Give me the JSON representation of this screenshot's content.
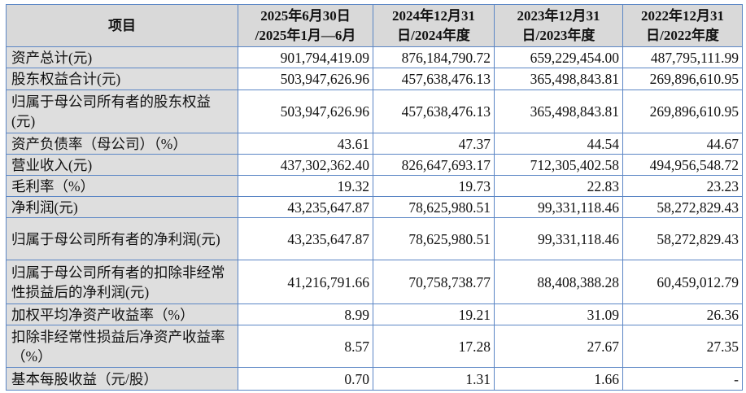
{
  "table": {
    "headers": [
      "项目",
      "2025年6月30日\n/2025年1月—6月",
      "2024年12月31\n日/2024年度",
      "2023年12月31\n日/2023年度",
      "2022年12月31\n日/2022年度"
    ],
    "rows": [
      {
        "label": "资产总计(元)",
        "values": [
          "901,794,419.09",
          "876,184,790.72",
          "659,229,454.00",
          "487,795,111.99"
        ]
      },
      {
        "label": "股东权益合计(元)",
        "values": [
          "503,947,626.96",
          "457,638,476.13",
          "365,498,843.81",
          "269,896,610.95"
        ]
      },
      {
        "label": "归属于母公司所有者的股东权益(元)",
        "values": [
          "503,947,626.96",
          "457,638,476.13",
          "365,498,843.81",
          "269,896,610.95"
        ]
      },
      {
        "label": "资产负债率（母公司）（%）",
        "values": [
          "43.61",
          "47.37",
          "44.54",
          "44.67"
        ]
      },
      {
        "label": "营业收入(元)",
        "values": [
          "437,302,362.40",
          "826,647,693.17",
          "712,305,402.58",
          "494,956,548.72"
        ]
      },
      {
        "label": "毛利率（%）",
        "values": [
          "19.32",
          "19.73",
          "22.83",
          "23.23"
        ]
      },
      {
        "label": "净利润(元)",
        "values": [
          "43,235,647.87",
          "78,625,980.51",
          "99,331,118.46",
          "58,272,829.43"
        ]
      },
      {
        "label": "归属于母公司所有者的净利润(元)",
        "values": [
          "43,235,647.87",
          "78,625,980.51",
          "99,331,118.46",
          "58,272,829.43"
        ]
      },
      {
        "label": "归属于母公司所有者的扣除非经常性损益后的净利润(元)",
        "values": [
          "41,216,791.66",
          "70,758,738.77",
          "88,408,388.28",
          "60,459,012.79"
        ]
      },
      {
        "label": "加权平均净资产收益率（%）",
        "values": [
          "8.99",
          "19.21",
          "31.09",
          "26.36"
        ]
      },
      {
        "label": "扣除非经常性损益后净资产收益率（%）",
        "values": [
          "8.57",
          "17.28",
          "27.67",
          "27.35"
        ]
      },
      {
        "label": "基本每股收益（元/股）",
        "values": [
          "0.70",
          "1.31",
          "1.66",
          "-"
        ]
      }
    ]
  }
}
